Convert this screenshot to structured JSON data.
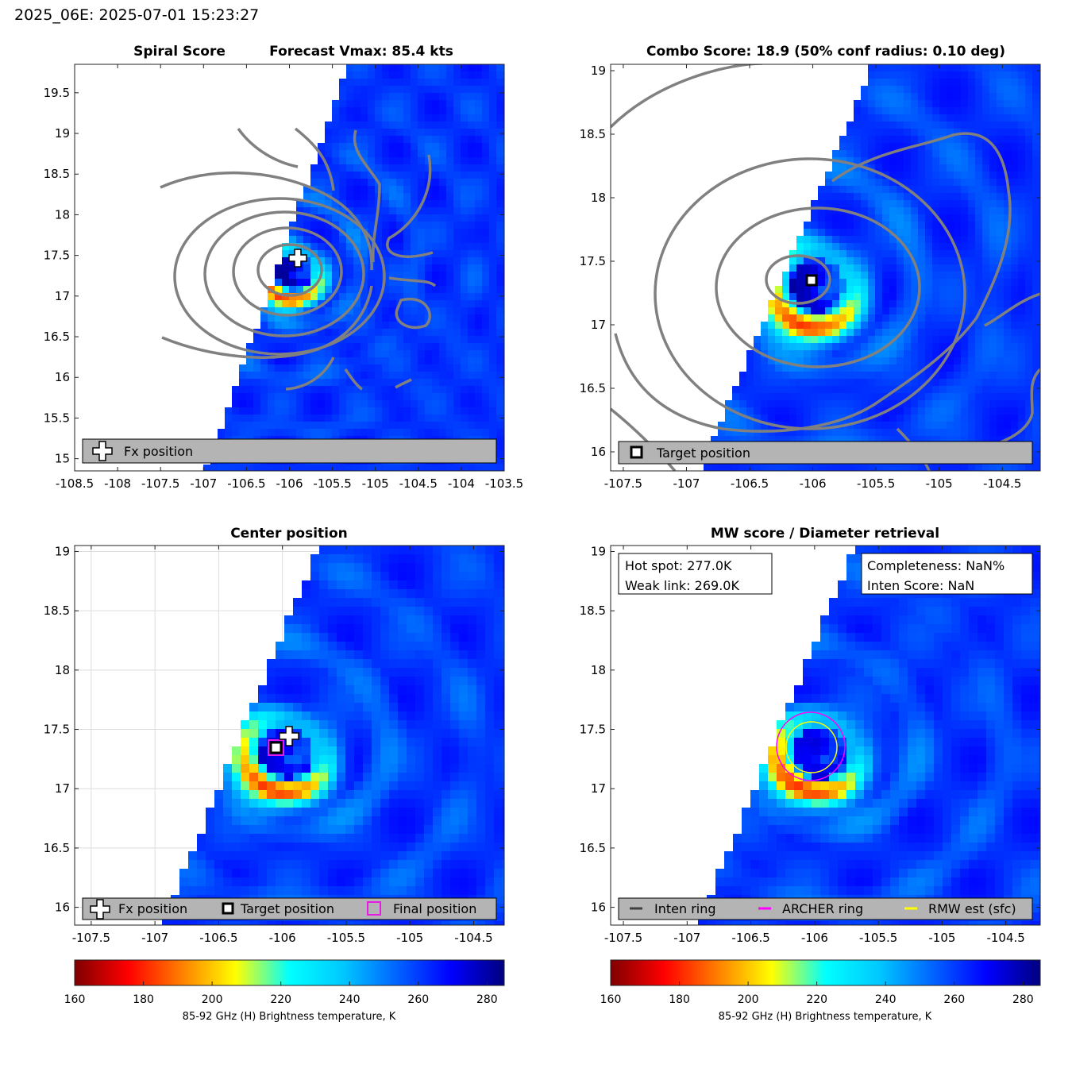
{
  "header": {
    "title": "2025_06E: 2025-07-01 15:23:27"
  },
  "panels": {
    "spiral": {
      "title_left": "Spiral Score",
      "title_right": "Forecast Vmax: 85.4 kts",
      "legend": [
        "Fx position"
      ]
    },
    "combo": {
      "title": "Combo Score: 18.9  (50% conf radius: 0.10 deg)",
      "legend": [
        "Target position"
      ]
    },
    "center": {
      "title": "Center position",
      "legend": [
        "Fx position",
        "Target position",
        "Final position"
      ]
    },
    "mw": {
      "title": "MW score / Diameter retrieval",
      "box_left": [
        "Hot spot: 277.0K",
        "Weak link: 269.0K"
      ],
      "box_right": [
        "Completeness: NaN%",
        "Inten Score: NaN"
      ],
      "legend": [
        "Inten ring",
        "ARCHER ring",
        "RMW est (sfc)"
      ]
    }
  },
  "colorbar": {
    "label": "85-92 GHz (H) Brightness temperature, K",
    "range": [
      160,
      285
    ],
    "ticks": [
      "160",
      "180",
      "200",
      "220",
      "240",
      "260",
      "280"
    ]
  },
  "colors": {
    "contour": "#808080",
    "archer_ring": "#ff00ff",
    "rmw_ring": "#ffff00",
    "inten_ring": "#404040",
    "legend_bg": "#b4b4b4",
    "final_marker": "#e619e6"
  },
  "chart_data": [
    {
      "type": "heatmap",
      "panel": "Spiral Score",
      "xlim": [
        -108.5,
        -103.5
      ],
      "ylim": [
        14.85,
        19.85
      ],
      "xticks": [
        "-108.5",
        "-108",
        "-107.5",
        "-107",
        "-106.5",
        "-106",
        "-105.5",
        "-105",
        "-104.5",
        "-104",
        "-103.5"
      ],
      "yticks": [
        "15",
        "15.5",
        "16",
        "16.5",
        "17",
        "17.5",
        "18",
        "18.5",
        "19",
        "19.5"
      ],
      "markers": [
        {
          "label": "Fx position",
          "lon": -105.97,
          "lat": 17.43
        }
      ]
    },
    {
      "type": "heatmap",
      "panel": "Combo Score",
      "xlim": [
        -107.6,
        -104.2
      ],
      "ylim": [
        15.85,
        19.05
      ],
      "xticks": [
        "-107.5",
        "-107",
        "-106.5",
        "-106",
        "-105.5",
        "-105",
        "-104.5"
      ],
      "yticks": [
        "16",
        "16.5",
        "17",
        "17.5",
        "18",
        "18.5",
        "19"
      ],
      "markers": [
        {
          "label": "Target position",
          "lon": -106.05,
          "lat": 17.34
        }
      ]
    },
    {
      "type": "heatmap",
      "panel": "Center position",
      "xlim": [
        -107.63,
        -104.26
      ],
      "ylim": [
        15.85,
        19.05
      ],
      "xticks": [
        "-107.5",
        "-107",
        "-106.5",
        "-106",
        "-105.5",
        "-105",
        "-104.5"
      ],
      "yticks": [
        "16",
        "16.5",
        "17",
        "17.5",
        "18",
        "18.5",
        "19"
      ],
      "markers": [
        {
          "label": "Fx position",
          "lon": -105.97,
          "lat": 17.44
        },
        {
          "label": "Target position",
          "lon": -106.05,
          "lat": 17.34
        },
        {
          "label": "Final position",
          "lon": -106.05,
          "lat": 17.34
        }
      ]
    },
    {
      "type": "heatmap",
      "panel": "MW score / Diameter retrieval",
      "xlim": [
        -107.6,
        -104.23
      ],
      "ylim": [
        15.85,
        19.05
      ],
      "xticks": [
        "-107.5",
        "-107",
        "-106.5",
        "-106",
        "-105.5",
        "-105",
        "-104.5"
      ],
      "yticks": [
        "16",
        "16.5",
        "17",
        "17.5",
        "18",
        "18.5",
        "19"
      ],
      "rings": [
        {
          "label": "ARCHER ring",
          "lon": -106.05,
          "lat": 17.35,
          "radius_deg": 0.27
        },
        {
          "label": "RMW est (sfc)",
          "lon": -106.05,
          "lat": 17.34,
          "radius_deg": 0.22
        }
      ]
    }
  ]
}
